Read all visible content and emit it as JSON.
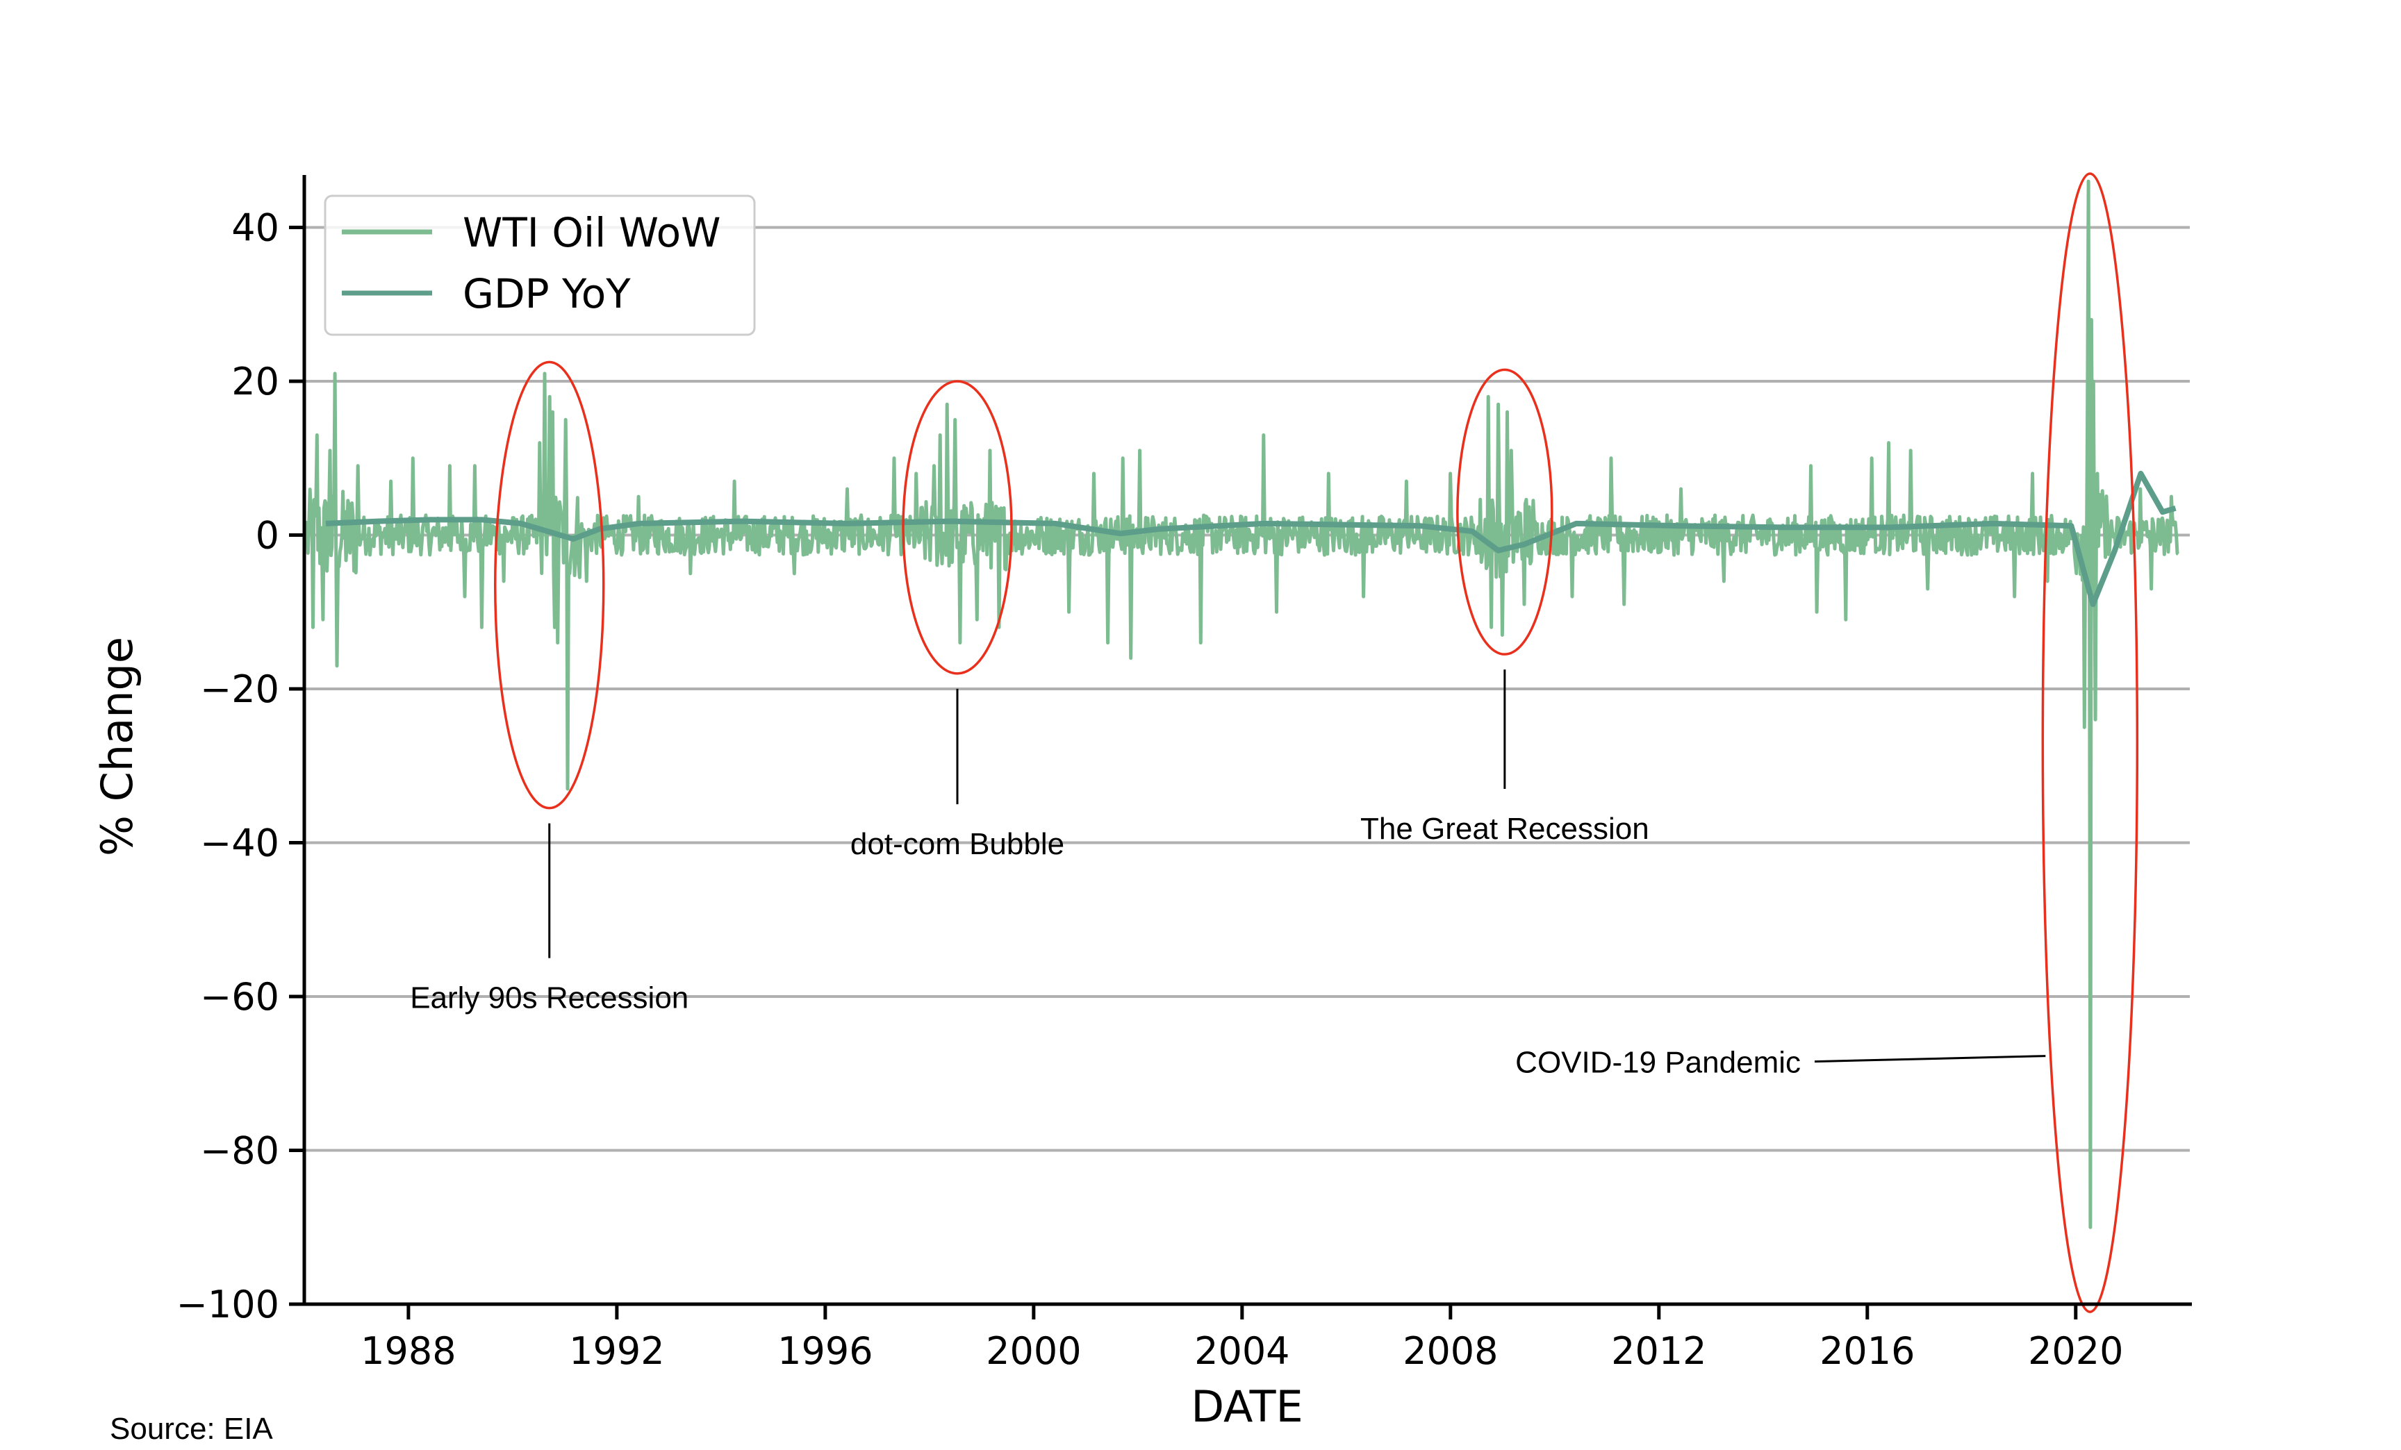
{
  "chart_data": {
    "type": "line",
    "xlabel": "DATE",
    "ylabel": "% Change",
    "xlim": [
      "1986-01-01",
      "2022-03-01"
    ],
    "ylim": [
      -100,
      47
    ],
    "x_ticks": [
      "1988",
      "1992",
      "1996",
      "2000",
      "2004",
      "2008",
      "2012",
      "2016",
      "2020"
    ],
    "y_ticks": [
      40,
      20,
      0,
      -20,
      -40,
      -60,
      -80,
      -100
    ],
    "y_tick_labels": [
      "40",
      "20",
      "0",
      "−20",
      "−40",
      "−60",
      "−80",
      "−100"
    ],
    "grid": "horizontal",
    "legend_position": "top-left",
    "source": "Source: EIA",
    "series": [
      {
        "name": "WTI Oil WoW",
        "color": "#7dbb91",
        "spikes": [
          {
            "date": "1986-03-01",
            "value": -12
          },
          {
            "date": "1986-04-01",
            "value": 13
          },
          {
            "date": "1986-05-15",
            "value": -11
          },
          {
            "date": "1986-07-01",
            "value": 11
          },
          {
            "date": "1986-08-01",
            "value": 21
          },
          {
            "date": "1986-08-20",
            "value": -17
          },
          {
            "date": "1987-01-15",
            "value": 9
          },
          {
            "date": "1987-09-01",
            "value": 7
          },
          {
            "date": "1988-02-01",
            "value": 10
          },
          {
            "date": "1988-10-15",
            "value": 9
          },
          {
            "date": "1989-02-01",
            "value": -8
          },
          {
            "date": "1989-04-10",
            "value": 9
          },
          {
            "date": "1989-06-01",
            "value": -12
          },
          {
            "date": "1989-11-01",
            "value": -6
          },
          {
            "date": "1990-07-10",
            "value": 12
          },
          {
            "date": "1990-08-10",
            "value": 21
          },
          {
            "date": "1990-09-15",
            "value": 18
          },
          {
            "date": "1990-10-10",
            "value": 16
          },
          {
            "date": "1990-10-25",
            "value": -12
          },
          {
            "date": "1990-11-15",
            "value": -14
          },
          {
            "date": "1991-01-10",
            "value": 15
          },
          {
            "date": "1991-01-20",
            "value": -33
          },
          {
            "date": "1991-06-01",
            "value": -6
          },
          {
            "date": "1992-06-01",
            "value": 5
          },
          {
            "date": "1993-06-01",
            "value": -5
          },
          {
            "date": "1994-04-01",
            "value": 7
          },
          {
            "date": "1995-06-01",
            "value": -5
          },
          {
            "date": "1996-06-01",
            "value": 6
          },
          {
            "date": "1997-05-01",
            "value": 10
          },
          {
            "date": "1997-10-01",
            "value": 8
          },
          {
            "date": "1998-02-01",
            "value": 9
          },
          {
            "date": "1998-03-15",
            "value": 13
          },
          {
            "date": "1998-05-01",
            "value": 17
          },
          {
            "date": "1998-07-01",
            "value": 15
          },
          {
            "date": "1998-08-01",
            "value": -14
          },
          {
            "date": "1998-12-01",
            "value": -11
          },
          {
            "date": "1999-03-01",
            "value": 11
          },
          {
            "date": "1999-05-01",
            "value": -12
          },
          {
            "date": "2000-09-01",
            "value": -10
          },
          {
            "date": "2001-03-01",
            "value": 8
          },
          {
            "date": "2001-06-01",
            "value": -14
          },
          {
            "date": "2001-09-20",
            "value": 10
          },
          {
            "date": "2001-11-15",
            "value": -16
          },
          {
            "date": "2002-01-15",
            "value": 11
          },
          {
            "date": "2003-03-20",
            "value": -14
          },
          {
            "date": "2004-06-01",
            "value": 13
          },
          {
            "date": "2004-09-01",
            "value": -10
          },
          {
            "date": "2005-09-01",
            "value": 8
          },
          {
            "date": "2006-05-01",
            "value": -8
          },
          {
            "date": "2007-03-01",
            "value": 7
          },
          {
            "date": "2008-01-01",
            "value": 8
          },
          {
            "date": "2008-09-20",
            "value": 18
          },
          {
            "date": "2008-10-15",
            "value": -12
          },
          {
            "date": "2008-12-01",
            "value": 17
          },
          {
            "date": "2009-01-01",
            "value": -13
          },
          {
            "date": "2009-02-01",
            "value": 16
          },
          {
            "date": "2009-03-01",
            "value": 11
          },
          {
            "date": "2009-06-01",
            "value": -9
          },
          {
            "date": "2010-05-01",
            "value": -8
          },
          {
            "date": "2011-02-01",
            "value": 10
          },
          {
            "date": "2011-05-01",
            "value": -9
          },
          {
            "date": "2012-06-01",
            "value": 6
          },
          {
            "date": "2013-04-01",
            "value": -6
          },
          {
            "date": "2014-12-01",
            "value": 9
          },
          {
            "date": "2015-01-15",
            "value": -10
          },
          {
            "date": "2015-08-01",
            "value": -11
          },
          {
            "date": "2016-02-01",
            "value": 10
          },
          {
            "date": "2016-06-01",
            "value": 12
          },
          {
            "date": "2016-11-01",
            "value": 11
          },
          {
            "date": "2017-03-01",
            "value": -7
          },
          {
            "date": "2018-11-01",
            "value": -8
          },
          {
            "date": "2019-03-01",
            "value": 8
          },
          {
            "date": "2019-06-15",
            "value": -6
          },
          {
            "date": "2020-03-01",
            "value": -25
          },
          {
            "date": "2020-03-20",
            "value": 15
          },
          {
            "date": "2020-04-01",
            "value": 46
          },
          {
            "date": "2020-04-10",
            "value": -90
          },
          {
            "date": "2020-04-20",
            "value": 28
          },
          {
            "date": "2020-05-01",
            "value": 20
          },
          {
            "date": "2020-05-15",
            "value": -24
          },
          {
            "date": "2020-06-01",
            "value": 8
          },
          {
            "date": "2021-04-01",
            "value": 6
          },
          {
            "date": "2021-06-15",
            "value": -7
          },
          {
            "date": "2021-11-01",
            "value": 5
          }
        ]
      },
      {
        "name": "GDP YoY",
        "color": "#5c9e8a",
        "points": [
          {
            "date": "1986-06-01",
            "value": 1.5
          },
          {
            "date": "1987-06-01",
            "value": 1.8
          },
          {
            "date": "1988-06-01",
            "value": 2.0
          },
          {
            "date": "1989-06-01",
            "value": 2.0
          },
          {
            "date": "1990-03-01",
            "value": 1.5
          },
          {
            "date": "1990-09-01",
            "value": 0.5
          },
          {
            "date": "1991-03-01",
            "value": -0.5
          },
          {
            "date": "1991-09-01",
            "value": 0.8
          },
          {
            "date": "1992-06-01",
            "value": 1.5
          },
          {
            "date": "1994-06-01",
            "value": 1.8
          },
          {
            "date": "1996-06-01",
            "value": 1.5
          },
          {
            "date": "1998-06-01",
            "value": 1.8
          },
          {
            "date": "2000-06-01",
            "value": 1.5
          },
          {
            "date": "2001-09-01",
            "value": 0.2
          },
          {
            "date": "2002-06-01",
            "value": 0.8
          },
          {
            "date": "2004-06-01",
            "value": 1.5
          },
          {
            "date": "2006-06-01",
            "value": 1.3
          },
          {
            "date": "2007-06-01",
            "value": 1.2
          },
          {
            "date": "2008-06-01",
            "value": 0.5
          },
          {
            "date": "2008-12-01",
            "value": -2.0
          },
          {
            "date": "2009-06-01",
            "value": -1.2
          },
          {
            "date": "2010-06-01",
            "value": 1.5
          },
          {
            "date": "2012-06-01",
            "value": 1.2
          },
          {
            "date": "2014-06-01",
            "value": 1.0
          },
          {
            "date": "2016-06-01",
            "value": 1.0
          },
          {
            "date": "2018-06-01",
            "value": 1.5
          },
          {
            "date": "2019-12-01",
            "value": 1.2
          },
          {
            "date": "2020-05-01",
            "value": -9
          },
          {
            "date": "2020-10-01",
            "value": -2
          },
          {
            "date": "2021-04-01",
            "value": 8
          },
          {
            "date": "2021-09-01",
            "value": 3
          },
          {
            "date": "2021-12-01",
            "value": 3.5
          }
        ]
      }
    ],
    "annotations": [
      {
        "text": "Early 90s Recession",
        "date": "1990-09-15",
        "y_center": -6.5,
        "y_radius": 29,
        "label_value": -55
      },
      {
        "text": "dot-com Bubble",
        "date": "1998-07-15",
        "y_center": 1,
        "y_radius": 19,
        "label_value": -35
      },
      {
        "text": "The Great Recession",
        "date": "2009-01-15",
        "y_center": 3,
        "y_radius": 18.5,
        "label_value": -33
      },
      {
        "text": "COVID-19 Pandemic",
        "date": "2020-04-10",
        "y_center": -27,
        "y_radius": 74,
        "label_value": -68
      }
    ]
  }
}
